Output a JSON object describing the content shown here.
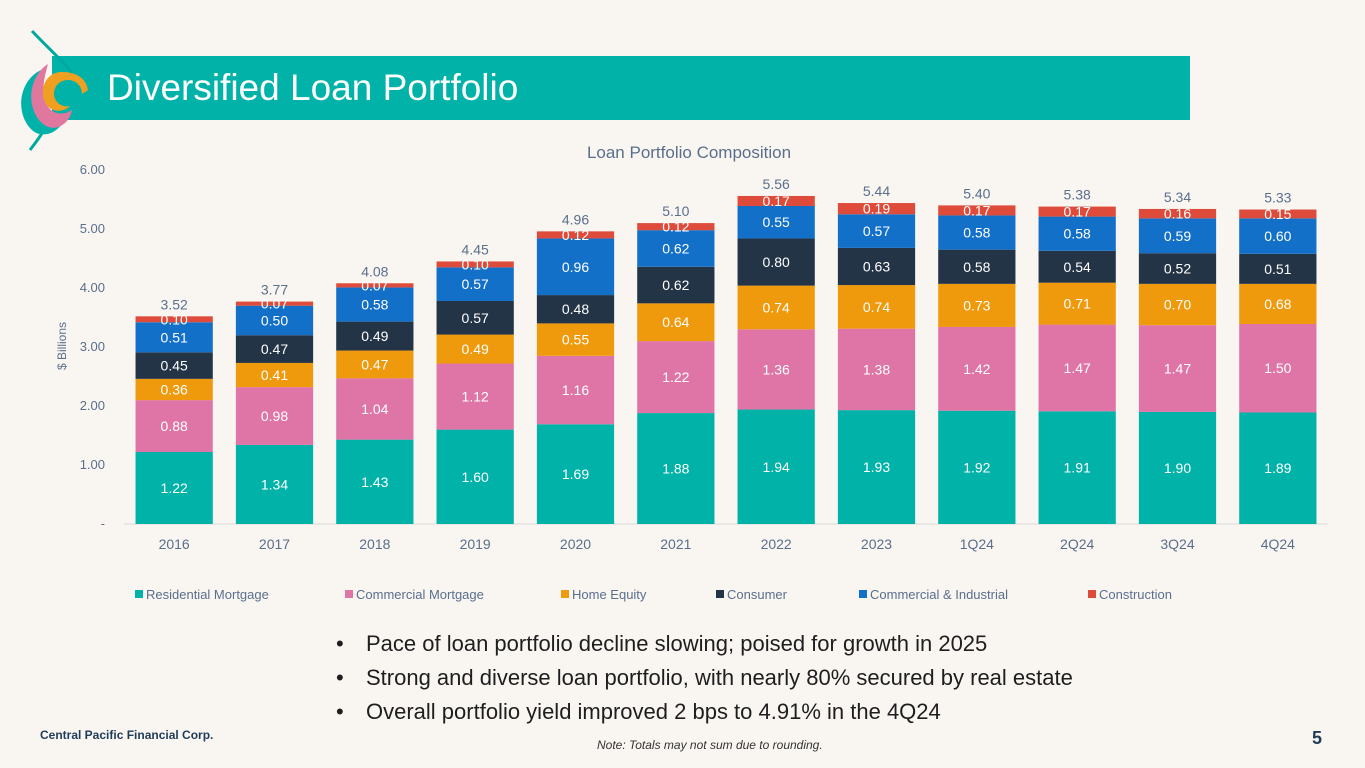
{
  "slide": {
    "title": "Diversified Loan Portfolio",
    "company": "Central Pacific Financial Corp.",
    "note": "Note: Totals may not sum due to rounding.",
    "page_number": "5",
    "bullets": [
      "Pace of loan portfolio decline slowing; poised for growth in 2025",
      "Strong and diverse loan portfolio, with nearly 80% secured by real estate",
      "Overall portfolio yield improved 2 bps to 4.91% in the 4Q24"
    ]
  },
  "colors": {
    "banner": "#00b2a8",
    "axis_text": "#5a6f8c"
  },
  "chart_data": {
    "type": "bar",
    "stacked": true,
    "title": "Loan Portfolio Composition",
    "ylabel": "$ Billions",
    "ylim": [
      0,
      6
    ],
    "yticks": [
      0,
      1,
      2,
      3,
      4,
      5,
      6
    ],
    "ytick_labels": [
      "-",
      "1.00",
      "2.00",
      "3.00",
      "4.00",
      "5.00",
      "6.00"
    ],
    "legend_position": "bottom",
    "categories": [
      "2016",
      "2017",
      "2018",
      "2019",
      "2020",
      "2021",
      "2022",
      "2023",
      "1Q24",
      "2Q24",
      "3Q24",
      "4Q24"
    ],
    "totals": [
      "3.52",
      "3.77",
      "4.08",
      "4.45",
      "4.96",
      "5.10",
      "5.56",
      "5.44",
      "5.40",
      "5.38",
      "5.34",
      "5.33"
    ],
    "series": [
      {
        "name": "Residential Mortgage",
        "color": "#00b2a8",
        "values": [
          1.22,
          1.34,
          1.43,
          1.6,
          1.69,
          1.88,
          1.94,
          1.93,
          1.92,
          1.91,
          1.9,
          1.89
        ]
      },
      {
        "name": "Commercial Mortgage",
        "color": "#df75a6",
        "values": [
          0.88,
          0.98,
          1.04,
          1.12,
          1.16,
          1.22,
          1.36,
          1.38,
          1.42,
          1.47,
          1.47,
          1.5
        ]
      },
      {
        "name": "Home Equity",
        "color": "#ef9a0c",
        "values": [
          0.36,
          0.41,
          0.47,
          0.49,
          0.55,
          0.64,
          0.74,
          0.74,
          0.73,
          0.71,
          0.7,
          0.68
        ]
      },
      {
        "name": "Consumer",
        "color": "#243447",
        "values": [
          0.45,
          0.47,
          0.49,
          0.57,
          0.48,
          0.62,
          0.8,
          0.63,
          0.58,
          0.54,
          0.52,
          0.51
        ]
      },
      {
        "name": "Commercial & Industrial",
        "color": "#1370c9",
        "values": [
          0.51,
          0.5,
          0.58,
          0.57,
          0.96,
          0.62,
          0.55,
          0.57,
          0.58,
          0.58,
          0.59,
          0.6
        ]
      },
      {
        "name": "Construction",
        "color": "#df4b3a",
        "values": [
          0.1,
          0.07,
          0.07,
          0.1,
          0.12,
          0.12,
          0.17,
          0.19,
          0.17,
          0.17,
          0.16,
          0.15
        ]
      }
    ]
  }
}
